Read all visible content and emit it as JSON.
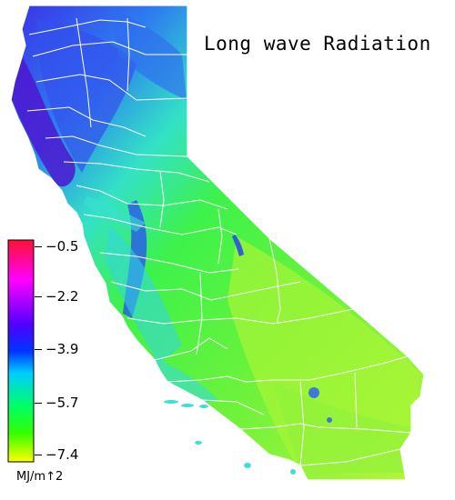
{
  "map": {
    "title": "Long wave Radiation",
    "region": "California",
    "legend": {
      "unit": "MJ/m↑2",
      "ticks": [
        "−0.5",
        "−2.2",
        "−3.9",
        "−5.7",
        "−7.4"
      ],
      "colors": [
        "#ff0033",
        "#ff00ff",
        "#7a00ff",
        "#0000ff",
        "#00ccff",
        "#00ff66",
        "#33ff00",
        "#ffff00"
      ]
    },
    "palette": {
      "north_coast": "#5a22d8",
      "coast_blue": "#2b4cf0",
      "valley_cyan": "#29d6e6",
      "interior_green": "#43f03c",
      "desert_yellowgreen": "#a6f535",
      "boundary": "#ffffff"
    }
  }
}
